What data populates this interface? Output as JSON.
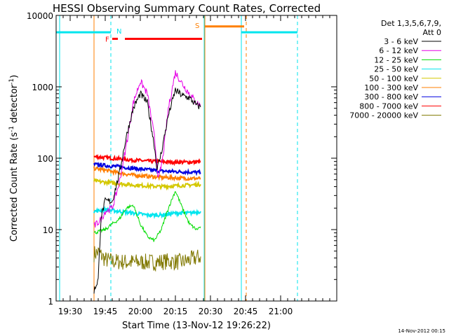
{
  "chart_data": {
    "type": "line",
    "title": "HESSI Observing Summary Count Rates, Corrected",
    "xlabel": "Start Time (13-Nov-12 19:26:22)",
    "ylabel_main": "Corrected Count Rate (s",
    "ylabel_sup1": "-1",
    "ylabel_mid": " detector",
    "ylabel_sup2": "-1",
    "ylabel_end": ")",
    "footer": "14-Nov-2012 00:15",
    "yscale": "log",
    "ylim": [
      1,
      10000
    ],
    "xlim_minutes": [
      19.4,
      21.4
    ],
    "xticks": [
      {
        "t": 19.5,
        "label": "19:30"
      },
      {
        "t": 19.75,
        "label": "19:45"
      },
      {
        "t": 20.0,
        "label": "20:00"
      },
      {
        "t": 20.25,
        "label": "20:15"
      },
      {
        "t": 20.5,
        "label": "20:30"
      },
      {
        "t": 20.75,
        "label": "20:45"
      },
      {
        "t": 21.0,
        "label": "21:00"
      }
    ],
    "yticks": [
      {
        "v": 1,
        "label": "1"
      },
      {
        "v": 10,
        "label": "10"
      },
      {
        "v": 100,
        "label": "100"
      },
      {
        "v": 1000,
        "label": "1000"
      },
      {
        "v": 10000,
        "label": "10000"
      }
    ],
    "legend": {
      "header1": "Det 1,3,5,6,7,9,",
      "header2": "Att 0",
      "position": "top-right",
      "entries": [
        {
          "label": "3 - 6 keV",
          "color": "#000000"
        },
        {
          "label": "6 - 12 keV",
          "color": "#e600e6"
        },
        {
          "label": "12 - 25 keV",
          "color": "#00dd00"
        },
        {
          "label": "25 - 50 keV",
          "color": "#00e5ee"
        },
        {
          "label": "50 - 100 keV",
          "color": "#d4c800"
        },
        {
          "label": "100 - 300 keV",
          "color": "#ff7f00"
        },
        {
          "label": "300 - 800 keV",
          "color": "#0000e0"
        },
        {
          "label": "800 - 7000 keV",
          "color": "#ff0000"
        },
        {
          "label": "7000 - 20000 keV",
          "color": "#807800"
        }
      ]
    },
    "series": [
      {
        "name": "3 - 6 keV",
        "color": "#000000",
        "points": [
          [
            19.67,
            1.4
          ],
          [
            19.7,
            2
          ],
          [
            19.72,
            15
          ],
          [
            19.75,
            25
          ],
          [
            19.8,
            25
          ],
          [
            19.85,
            60
          ],
          [
            19.9,
            200
          ],
          [
            19.95,
            500
          ],
          [
            20.0,
            800
          ],
          [
            20.05,
            600
          ],
          [
            20.1,
            150
          ],
          [
            20.12,
            70
          ],
          [
            20.15,
            120
          ],
          [
            20.2,
            400
          ],
          [
            20.25,
            900
          ],
          [
            20.3,
            750
          ],
          [
            20.35,
            700
          ],
          [
            20.4,
            550
          ],
          [
            20.43,
            520
          ]
        ]
      },
      {
        "name": "6 - 12 keV",
        "color": "#e600e6",
        "points": [
          [
            19.67,
            11
          ],
          [
            19.72,
            14
          ],
          [
            19.75,
            18
          ],
          [
            19.8,
            20
          ],
          [
            19.85,
            45
          ],
          [
            19.9,
            150
          ],
          [
            19.95,
            600
          ],
          [
            20.0,
            1200
          ],
          [
            20.05,
            800
          ],
          [
            20.1,
            200
          ],
          [
            20.13,
            50
          ],
          [
            20.16,
            100
          ],
          [
            20.2,
            500
          ],
          [
            20.25,
            1600
          ],
          [
            20.3,
            1100
          ],
          [
            20.35,
            800
          ],
          [
            20.4,
            600
          ],
          [
            20.43,
            550
          ]
        ]
      },
      {
        "name": "12 - 25 keV",
        "color": "#00dd00",
        "points": [
          [
            19.67,
            9
          ],
          [
            19.75,
            10
          ],
          [
            19.8,
            12
          ],
          [
            19.85,
            14
          ],
          [
            19.9,
            20
          ],
          [
            19.95,
            22
          ],
          [
            20.0,
            12
          ],
          [
            20.05,
            8
          ],
          [
            20.1,
            7
          ],
          [
            20.15,
            10
          ],
          [
            20.2,
            20
          ],
          [
            20.25,
            35
          ],
          [
            20.3,
            20
          ],
          [
            20.35,
            12
          ],
          [
            20.4,
            10
          ],
          [
            20.43,
            11
          ]
        ]
      },
      {
        "name": "25 - 50 keV",
        "color": "#00e5ee",
        "points": [
          [
            19.67,
            18
          ],
          [
            19.75,
            19
          ],
          [
            19.85,
            18
          ],
          [
            19.95,
            17
          ],
          [
            20.05,
            16
          ],
          [
            20.15,
            16
          ],
          [
            20.25,
            17
          ],
          [
            20.35,
            17
          ],
          [
            20.43,
            18
          ]
        ]
      },
      {
        "name": "50 - 100 keV",
        "color": "#d4c800",
        "points": [
          [
            19.67,
            48
          ],
          [
            19.75,
            46
          ],
          [
            19.85,
            44
          ],
          [
            19.95,
            42
          ],
          [
            20.05,
            41
          ],
          [
            20.15,
            40
          ],
          [
            20.25,
            41
          ],
          [
            20.35,
            42
          ],
          [
            20.43,
            43
          ]
        ]
      },
      {
        "name": "100 - 300 keV",
        "color": "#ff7f00",
        "points": [
          [
            19.67,
            72
          ],
          [
            19.75,
            68
          ],
          [
            19.85,
            62
          ],
          [
            19.95,
            58
          ],
          [
            20.05,
            56
          ],
          [
            20.15,
            54
          ],
          [
            20.25,
            53
          ],
          [
            20.35,
            52
          ],
          [
            20.43,
            52
          ]
        ]
      },
      {
        "name": "300 - 800 keV",
        "color": "#0000e0",
        "points": [
          [
            19.67,
            82
          ],
          [
            19.75,
            79
          ],
          [
            19.85,
            76
          ],
          [
            19.95,
            72
          ],
          [
            20.05,
            69
          ],
          [
            20.15,
            66
          ],
          [
            20.25,
            65
          ],
          [
            20.35,
            64
          ],
          [
            20.43,
            63
          ]
        ]
      },
      {
        "name": "800 - 7000 keV",
        "color": "#ff0000",
        "points": [
          [
            19.67,
            105
          ],
          [
            19.75,
            102
          ],
          [
            19.85,
            98
          ],
          [
            19.95,
            94
          ],
          [
            20.05,
            91
          ],
          [
            20.15,
            89
          ],
          [
            20.25,
            88
          ],
          [
            20.35,
            88
          ],
          [
            20.43,
            89
          ]
        ]
      },
      {
        "name": "7000 - 20000 keV",
        "color": "#807800",
        "points": [
          [
            19.67,
            4.6
          ],
          [
            19.7,
            4.8
          ],
          [
            19.72,
            4.4
          ],
          [
            19.75,
            3.8
          ],
          [
            19.8,
            3.6
          ],
          [
            19.9,
            3.5
          ],
          [
            20.0,
            3.5
          ],
          [
            20.1,
            3.5
          ],
          [
            20.2,
            3.6
          ],
          [
            20.3,
            3.5
          ],
          [
            20.43,
            4.2
          ]
        ]
      }
    ],
    "flags": {
      "N_label": "N",
      "F_label": "F",
      "S_label": "S",
      "night_bars": [
        {
          "from": 19.4,
          "to": 19.79,
          "value": 5800
        },
        {
          "from": 20.72,
          "to": 21.12,
          "value": 5800
        }
      ],
      "saa_bar": {
        "from": 20.46,
        "to": 20.74,
        "value": 7000
      },
      "flare_bars": [
        {
          "from": 19.8,
          "to": 19.84,
          "value": 4700
        },
        {
          "from": 19.89,
          "to": 20.44,
          "value": 4700
        }
      ],
      "vlines_solid_cyan": [
        19.425,
        20.72,
        20.455
      ],
      "vlines_dashed_cyan": [
        19.79,
        21.12
      ],
      "vlines_solid_orange": [
        19.67,
        20.46
      ],
      "vline_dashed_orange": 20.755
    }
  }
}
